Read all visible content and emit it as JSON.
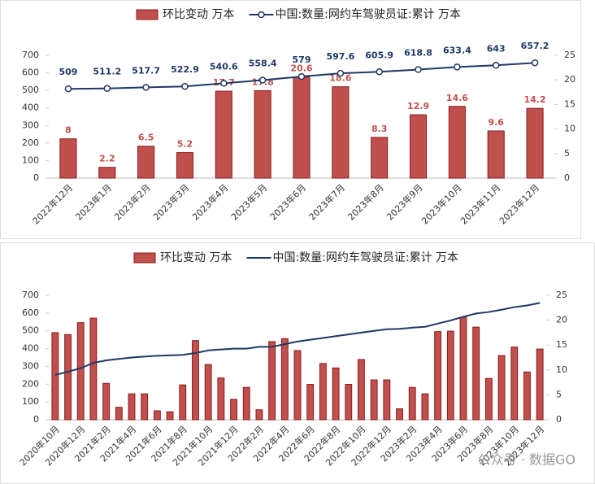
{
  "chart_data": [
    {
      "type": "bar-line",
      "categories": [
        "2022年12月",
        "2023年1月",
        "2023年2月",
        "2023年3月",
        "2023年4月",
        "2023年5月",
        "2023年6月",
        "2023年7月",
        "2023年8月",
        "2023年9月",
        "2023年10月",
        "2023年11月",
        "2023年12月"
      ],
      "series": [
        {
          "name": "环比变动 万本",
          "type": "bar",
          "axis": "y2",
          "color": "#c0504d",
          "values": [
            8,
            2.2,
            6.5,
            5.2,
            17.7,
            17.8,
            20.6,
            18.6,
            8.3,
            12.9,
            14.6,
            9.6,
            14.2
          ]
        },
        {
          "name": "中国:数量:网约车驾驶员证:累计 万本",
          "type": "line",
          "axis": "y",
          "color": "#1f3864",
          "markers": true,
          "values": [
            509,
            511.2,
            517.7,
            522.9,
            540.6,
            558.4,
            579,
            597.6,
            605.9,
            618.8,
            633.4,
            643,
            657.2
          ]
        }
      ],
      "data_labels": true,
      "ylim": [
        0,
        700
      ],
      "yticks": [
        0,
        100,
        200,
        300,
        400,
        500,
        600,
        700
      ],
      "y2lim": [
        0,
        25
      ],
      "y2ticks": [
        0,
        5,
        10,
        15,
        20,
        25
      ]
    },
    {
      "type": "bar-line",
      "categories": [
        "2020年10月",
        null,
        "2020年12月",
        null,
        "2021年2月",
        null,
        "2021年4月",
        null,
        "2021年6月",
        null,
        "2021年8月",
        null,
        "2021年10月",
        null,
        "2021年12月",
        null,
        "2022年2月",
        null,
        "2022年4月",
        null,
        "2022年6月",
        null,
        "2022年8月",
        null,
        "2022年10月",
        null,
        "2022年12月",
        null,
        "2023年2月",
        null,
        "2023年4月",
        null,
        "2023年6月",
        null,
        "2023年8月",
        null,
        "2023年10月",
        null,
        "2023年12月"
      ],
      "series": [
        {
          "name": "环比变动 万本",
          "type": "bar",
          "axis": "y2",
          "color": "#c0504d",
          "values": [
            17.5,
            17.1,
            19.5,
            20.4,
            7.3,
            2.5,
            5.2,
            5.2,
            1.8,
            1.6,
            7.0,
            15.9,
            11.1,
            8.4,
            4.1,
            6.5,
            2.0,
            15.7,
            16.3,
            13.9,
            7.1,
            11.3,
            10.4,
            7.1,
            12.1,
            8.0,
            8,
            2.2,
            6.5,
            5.2,
            17.7,
            17.8,
            20.6,
            18.6,
            8.3,
            12.9,
            14.6,
            9.6,
            14.2
          ]
        },
        {
          "name": "中国:数量:网约车驾驶员证:累计 万本",
          "type": "line",
          "axis": "y",
          "color": "#1f3864",
          "markers": false,
          "values": [
            252,
            270,
            290,
            320,
            334,
            342,
            350,
            355,
            360,
            362,
            365,
            375,
            390,
            395,
            400,
            400,
            410,
            410,
            425,
            440,
            450,
            460,
            470,
            480,
            490,
            500,
            509,
            511.2,
            517.7,
            522.9,
            540.6,
            558.4,
            579,
            597.6,
            605.9,
            618.8,
            633.4,
            643,
            657.2
          ]
        }
      ],
      "data_labels": false,
      "ylim": [
        0,
        700
      ],
      "yticks": [
        0,
        100,
        200,
        300,
        400,
        500,
        600,
        700
      ],
      "y2lim": [
        0,
        25
      ],
      "y2ticks": [
        0,
        5,
        10,
        15,
        20,
        25
      ],
      "watermark": "公众号 · 数据GO"
    }
  ]
}
